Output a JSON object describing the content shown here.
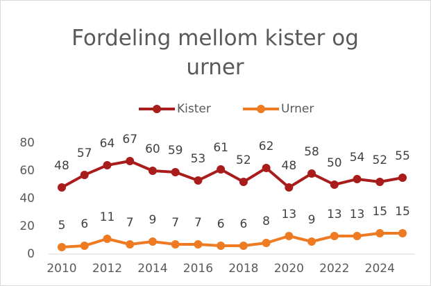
{
  "chart_data": {
    "type": "line",
    "title": "Fordeling mellom kister og urner",
    "x": [
      2010,
      2011,
      2012,
      2013,
      2014,
      2015,
      2016,
      2017,
      2018,
      2019,
      2020,
      2021,
      2022,
      2023,
      2024,
      2025
    ],
    "xlim": [
      2010,
      2025
    ],
    "xticks": [
      2010,
      2012,
      2014,
      2016,
      2018,
      2020,
      2022,
      2024
    ],
    "ylim": [
      0,
      80
    ],
    "yticks": [
      0,
      20,
      40,
      60,
      80
    ],
    "grid": false,
    "legend": "top",
    "series": [
      {
        "name": "Kister",
        "color": "#a81c1c",
        "values": [
          48,
          57,
          64,
          67,
          60,
          59,
          53,
          61,
          52,
          62,
          48,
          58,
          50,
          54,
          52,
          55
        ]
      },
      {
        "name": "Urner",
        "color": "#ee7b22",
        "values": [
          5,
          6,
          11,
          7,
          9,
          7,
          7,
          6,
          6,
          8,
          13,
          9,
          13,
          13,
          15,
          15
        ]
      }
    ]
  }
}
